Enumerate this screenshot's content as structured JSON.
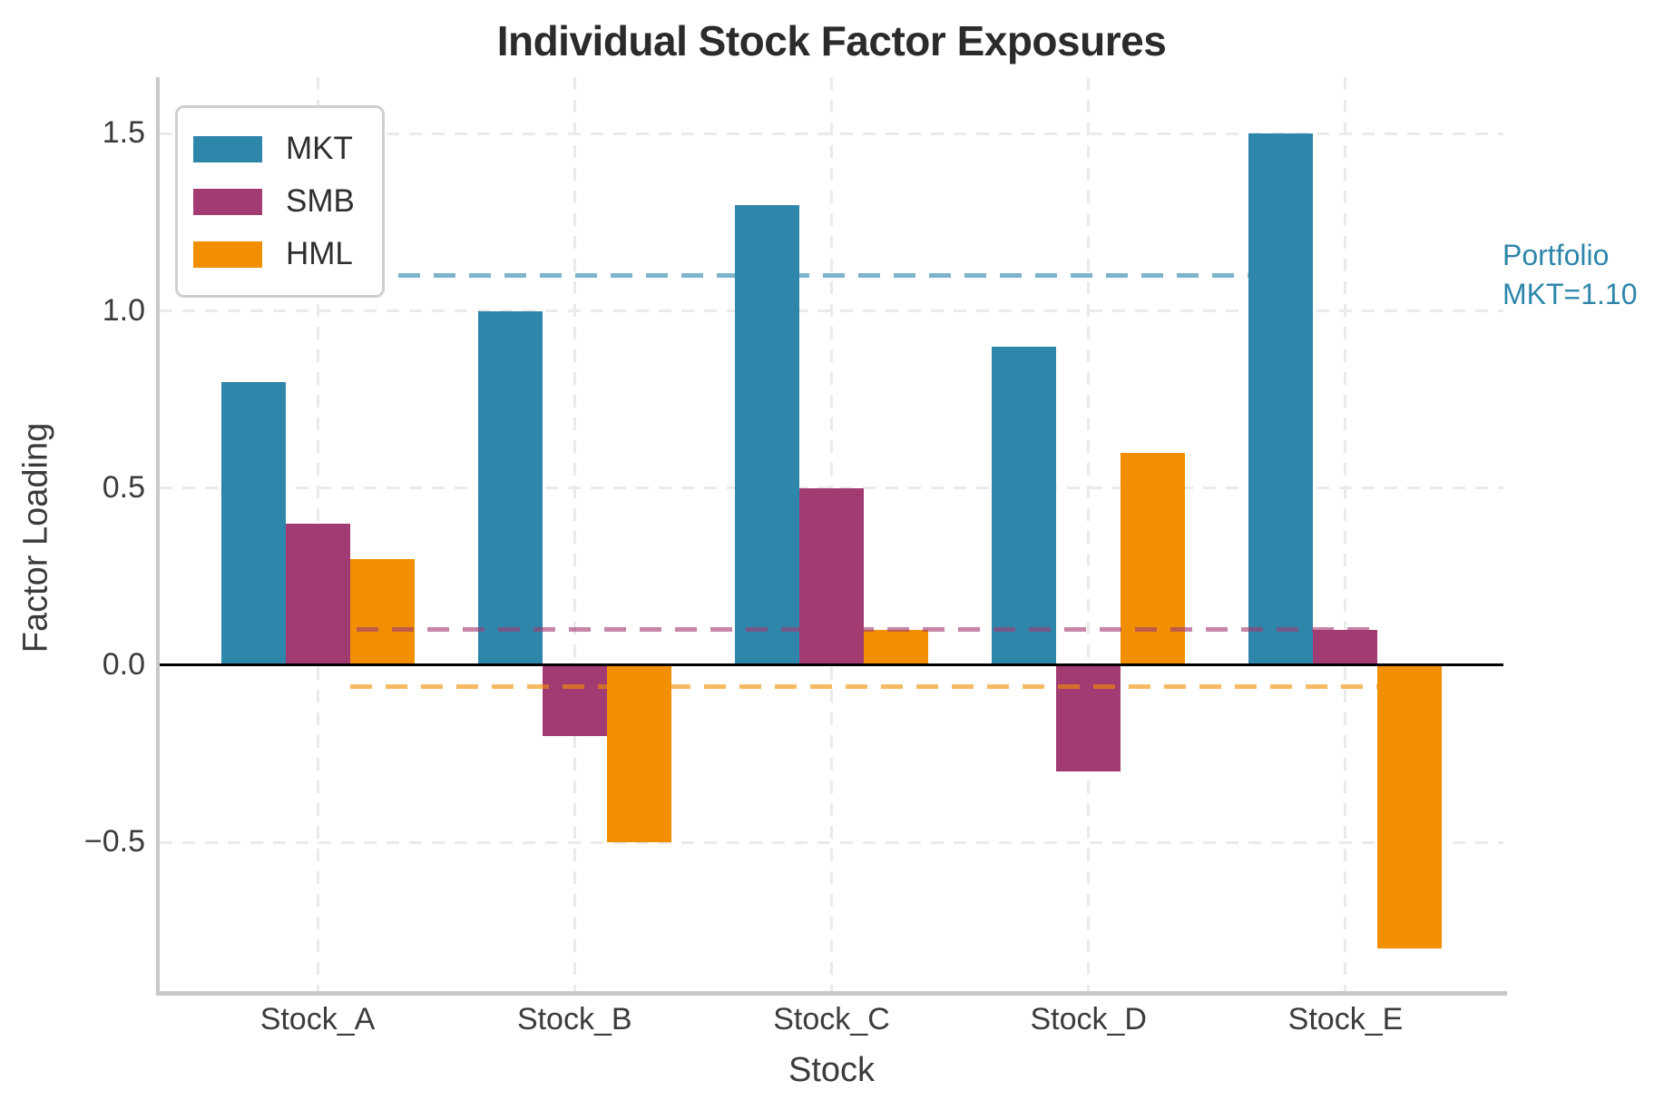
{
  "chart_data": {
    "type": "bar",
    "title": "Individual Stock Factor Exposures",
    "xlabel": "Stock",
    "ylabel": "Factor Loading",
    "categories": [
      "Stock_A",
      "Stock_B",
      "Stock_C",
      "Stock_D",
      "Stock_E"
    ],
    "series": [
      {
        "name": "MKT",
        "color": "#2E86AB",
        "values": [
          0.8,
          1.0,
          1.3,
          0.9,
          1.5
        ]
      },
      {
        "name": "SMB",
        "color": "#A23B72",
        "values": [
          0.4,
          -0.2,
          0.5,
          -0.3,
          0.1
        ]
      },
      {
        "name": "HML",
        "color": "#F18F01",
        "values": [
          0.3,
          -0.5,
          0.1,
          0.6,
          -0.8
        ]
      }
    ],
    "portfolio_lines": [
      {
        "series": "MKT",
        "value": 1.1,
        "color": "#2E86AB"
      },
      {
        "series": "SMB",
        "value": 0.1,
        "color": "#A23B72"
      },
      {
        "series": "HML",
        "value": -0.06,
        "color": "#F18F01"
      }
    ],
    "annotation": {
      "lines": [
        "Portfolio",
        "MKT=1.10"
      ],
      "color": "#2E86AB"
    },
    "y_ticks": [
      {
        "value": 1.5,
        "label": "1.5"
      },
      {
        "value": 1.0,
        "label": "1.0"
      },
      {
        "value": 0.5,
        "label": "0.5"
      },
      {
        "value": 0.0,
        "label": "0.0"
      },
      {
        "value": -0.5,
        "label": "−0.5"
      }
    ],
    "ylim": [
      -0.92,
      1.66
    ],
    "grid": true,
    "legend_position": "upper left",
    "colors": {
      "zero_line": "#000000",
      "grid": "#eaeaea",
      "spine": "#c9c9c9",
      "text": "#3b3b3b",
      "title": "#2b2b2b"
    }
  }
}
